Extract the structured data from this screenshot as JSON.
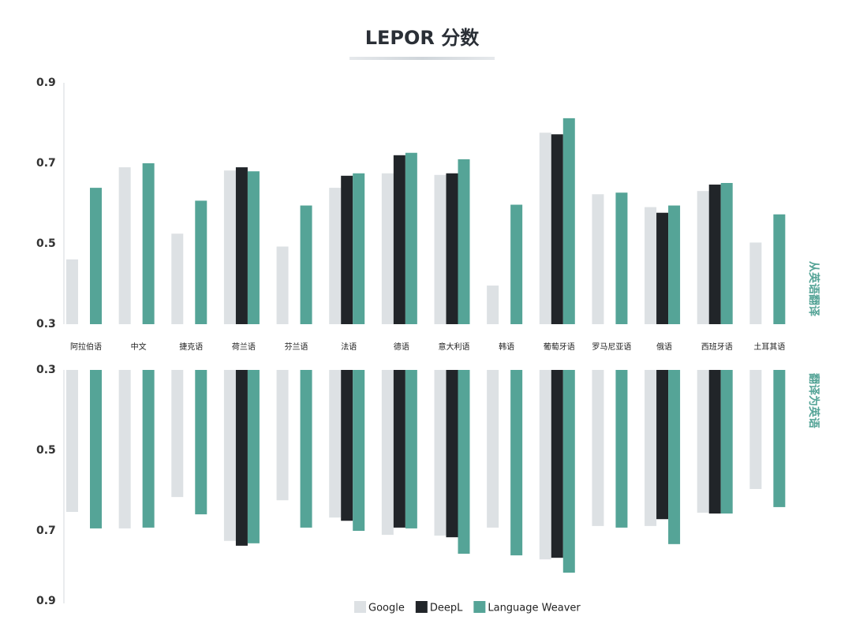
{
  "chart_data": [
    {
      "type": "bar",
      "title": "LEPOR 分数",
      "panel_label": "从英语翻译",
      "categories": [
        "阿拉伯语",
        "中文",
        "捷克语",
        "荷兰语",
        "芬兰语",
        "法语",
        "德语",
        "意大利语",
        "韩语",
        "葡萄牙语",
        "罗马尼亚语",
        "俄语",
        "西班牙语",
        "土耳其语"
      ],
      "series": [
        {
          "name": "Google",
          "color": "#dde1e4",
          "values": [
            0.461,
            0.69,
            0.525,
            0.682,
            0.493,
            0.639,
            0.675,
            0.671,
            0.396,
            0.776,
            0.623,
            0.591,
            0.631,
            0.503
          ]
        },
        {
          "name": "DeepL",
          "color": "#212529",
          "values": [
            null,
            null,
            null,
            0.69,
            null,
            0.669,
            0.72,
            0.675,
            null,
            0.772,
            null,
            0.577,
            0.647,
            null
          ]
        },
        {
          "name": "Language Weaver",
          "color": "#55a497",
          "values": [
            0.639,
            0.7,
            0.607,
            0.68,
            0.595,
            0.675,
            0.726,
            0.71,
            0.597,
            0.812,
            0.627,
            0.595,
            0.651,
            0.573
          ]
        }
      ],
      "ylim": [
        0.3,
        0.9
      ],
      "yticks": [
        0.3,
        0.5,
        0.7,
        0.9
      ],
      "inverted": false
    },
    {
      "type": "bar",
      "panel_label": "翻译为英语",
      "series": [
        {
          "color": "#dde1e4",
          "values": [
            0.653,
            0.694,
            0.616,
            0.725,
            0.624,
            0.667,
            0.71,
            0.712,
            0.692,
            0.771,
            0.688,
            0.688,
            0.655,
            0.596
          ]
        },
        {
          "color": "#212529",
          "values": [
            null,
            null,
            null,
            0.737,
            null,
            0.675,
            0.692,
            0.716,
            null,
            0.767,
            null,
            0.671,
            0.657,
            null
          ]
        },
        {
          "color": "#55a497",
          "values": [
            0.694,
            0.692,
            0.659,
            0.731,
            0.692,
            0.7,
            0.694,
            0.757,
            0.761,
            0.804,
            0.692,
            0.733,
            0.657,
            0.641
          ]
        }
      ],
      "ylim": [
        0.3,
        0.9
      ],
      "yticks": [
        0.3,
        0.5,
        0.7,
        0.9
      ],
      "inverted": true
    }
  ]
}
